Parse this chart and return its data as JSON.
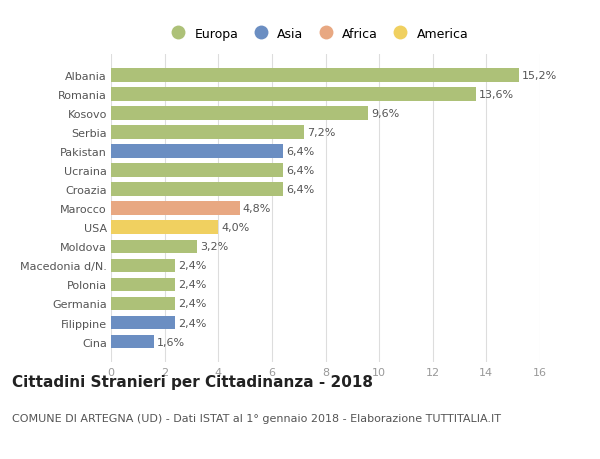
{
  "countries": [
    "Albania",
    "Romania",
    "Kosovo",
    "Serbia",
    "Pakistan",
    "Ucraina",
    "Croazia",
    "Marocco",
    "USA",
    "Moldova",
    "Macedonia d/N.",
    "Polonia",
    "Germania",
    "Filippine",
    "Cina"
  ],
  "values": [
    15.2,
    13.6,
    9.6,
    7.2,
    6.4,
    6.4,
    6.4,
    4.8,
    4.0,
    3.2,
    2.4,
    2.4,
    2.4,
    2.4,
    1.6
  ],
  "labels": [
    "15,2%",
    "13,6%",
    "9,6%",
    "7,2%",
    "6,4%",
    "6,4%",
    "6,4%",
    "4,8%",
    "4,0%",
    "3,2%",
    "2,4%",
    "2,4%",
    "2,4%",
    "2,4%",
    "1,6%"
  ],
  "continents": [
    "Europa",
    "Europa",
    "Europa",
    "Europa",
    "Asia",
    "Europa",
    "Europa",
    "Africa",
    "America",
    "Europa",
    "Europa",
    "Europa",
    "Europa",
    "Asia",
    "Asia"
  ],
  "continent_colors": {
    "Europa": "#adc178",
    "Asia": "#6b8ec2",
    "Africa": "#e8a882",
    "America": "#f0d060"
  },
  "legend_order": [
    "Europa",
    "Asia",
    "Africa",
    "America"
  ],
  "title": "Cittadini Stranieri per Cittadinanza - 2018",
  "subtitle": "COMUNE DI ARTEGNA (UD) - Dati ISTAT al 1° gennaio 2018 - Elaborazione TUTTITALIA.IT",
  "xlim": [
    0,
    16
  ],
  "xticks": [
    0,
    2,
    4,
    6,
    8,
    10,
    12,
    14,
    16
  ],
  "background_color": "#ffffff",
  "grid_color": "#dddddd",
  "bar_height": 0.72,
  "title_fontsize": 11,
  "subtitle_fontsize": 8,
  "legend_fontsize": 9,
  "tick_fontsize": 8,
  "value_fontsize": 8
}
